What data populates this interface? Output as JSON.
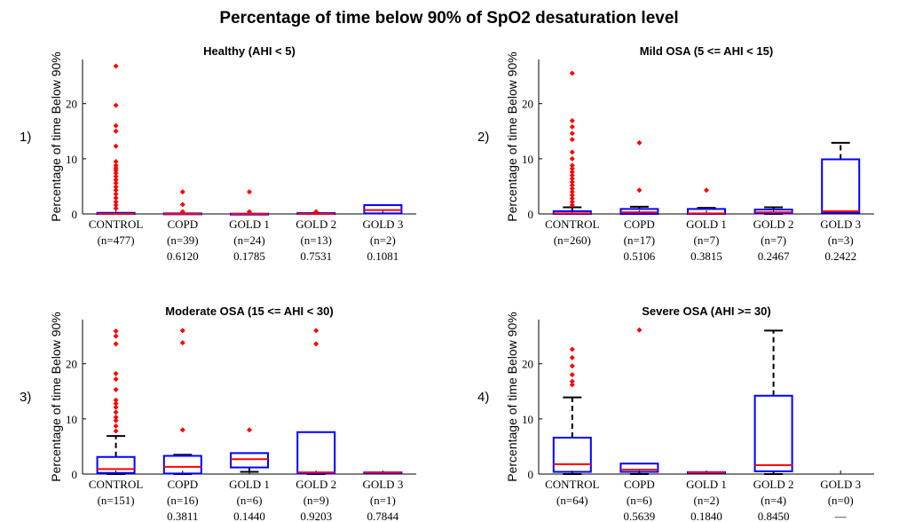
{
  "figure_title": "Percentage of time below 90% of SpO2 desaturation level",
  "chart_data": [
    {
      "type": "box",
      "panel_label": "1)",
      "title": "Healthy (AHI < 5)",
      "ylabel": "Percentage of time Below 90%",
      "xlabel": "",
      "ylim": [
        0,
        28
      ],
      "yticks": [
        0,
        10,
        20
      ],
      "grid": false,
      "categories": [
        "CONTROL",
        "COPD",
        "GOLD 1",
        "GOLD 2",
        "GOLD 3"
      ],
      "counts": [
        "(n=477)",
        "(n=39)",
        "(n=24)",
        "(n=13)",
        "(n=2)"
      ],
      "pvalues": [
        "",
        "0.6120",
        "0.1785",
        "0.7531",
        "0.1081"
      ],
      "boxes": [
        {
          "q1": 0,
          "median": 0,
          "q3": 0.2,
          "whisker_low": 0,
          "whisker_high": 0.2,
          "outliers": [
            26.8,
            19.7,
            16,
            15,
            12.3,
            9.5,
            8.8,
            8.3,
            7.9,
            7.4,
            6.8,
            6.2,
            5.6,
            4.9,
            4.3,
            3.6,
            2.9,
            2.2,
            1.6,
            1
          ]
        },
        {
          "q1": 0,
          "median": 0,
          "q3": 0.1,
          "whisker_low": 0,
          "whisker_high": 0.1,
          "outliers": [
            4,
            1.7,
            0.4
          ]
        },
        {
          "q1": 0,
          "median": 0,
          "q3": 0.05,
          "whisker_low": 0,
          "whisker_high": 0.05,
          "outliers": [
            4,
            0.4
          ]
        },
        {
          "q1": 0,
          "median": 0,
          "q3": 0.15,
          "whisker_low": 0,
          "whisker_high": 0.15,
          "outliers": [
            0.4
          ]
        },
        {
          "q1": 0.1,
          "median": 0.7,
          "q3": 1.6,
          "whisker_low": 0.1,
          "whisker_high": 1.6,
          "outliers": []
        }
      ]
    },
    {
      "type": "box",
      "panel_label": "2)",
      "title": "Mild OSA (5 <= AHI < 15)",
      "ylabel": "Percentage of time Below 90%",
      "xlabel": "",
      "ylim": [
        0,
        28
      ],
      "yticks": [
        0,
        10,
        20
      ],
      "grid": false,
      "categories": [
        "CONTROL",
        "COPD",
        "GOLD 1",
        "GOLD 2",
        "GOLD 3"
      ],
      "counts": [
        "(n=260)",
        "(n=17)",
        "(n=7)",
        "(n=7)",
        "(n=3)"
      ],
      "pvalues": [
        "",
        "0.5106",
        "0.3815",
        "0.2467",
        "0.2422"
      ],
      "boxes": [
        {
          "q1": 0,
          "median": 0.1,
          "q3": 0.5,
          "whisker_low": 0,
          "whisker_high": 1.2,
          "outliers": [
            25.5,
            16.9,
            15.8,
            14.6,
            13.5,
            11.2,
            10,
            8.8,
            8.2,
            7.6,
            7,
            6.4,
            5.8,
            5.2,
            4.6,
            4,
            3.4,
            2.8,
            2.2,
            1.6
          ]
        },
        {
          "q1": 0,
          "median": 0.3,
          "q3": 0.9,
          "whisker_low": 0,
          "whisker_high": 1.3,
          "outliers": [
            12.9,
            4.3
          ]
        },
        {
          "q1": 0,
          "median": 0.1,
          "q3": 0.9,
          "whisker_low": 0,
          "whisker_high": 1.1,
          "outliers": [
            4.3
          ]
        },
        {
          "q1": 0.1,
          "median": 0.3,
          "q3": 0.8,
          "whisker_low": 0,
          "whisker_high": 1.2,
          "outliers": []
        },
        {
          "q1": 0.2,
          "median": 0.5,
          "q3": 9.9,
          "whisker_low": 0.2,
          "whisker_high": 12.9,
          "outliers": []
        }
      ]
    },
    {
      "type": "box",
      "panel_label": "3)",
      "title": "Moderate OSA (15 <= AHI < 30)",
      "ylabel": "Percentage of time Below 90%",
      "xlabel": "",
      "ylim": [
        0,
        28
      ],
      "yticks": [
        0,
        10,
        20
      ],
      "grid": false,
      "categories": [
        "CONTROL",
        "COPD",
        "GOLD 1",
        "GOLD 2",
        "GOLD 3"
      ],
      "counts": [
        "(n=151)",
        "(n=16)",
        "(n=6)",
        "(n=9)",
        "(n=1)"
      ],
      "pvalues": [
        "",
        "0.3811",
        "0.1440",
        "0.9203",
        "0.7844"
      ],
      "boxes": [
        {
          "q1": 0.2,
          "median": 0.9,
          "q3": 3.1,
          "whisker_low": 0,
          "whisker_high": 6.9,
          "outliers": [
            25.9,
            25,
            23.6,
            18.2,
            17.2,
            15.3,
            13.4,
            12.8,
            12.1,
            11.2,
            10.3,
            9.7,
            8.7,
            7.8
          ]
        },
        {
          "q1": 0.1,
          "median": 1.3,
          "q3": 3.3,
          "whisker_low": 0,
          "whisker_high": 3.5,
          "outliers": [
            26,
            23.8,
            8
          ]
        },
        {
          "q1": 1.2,
          "median": 2.7,
          "q3": 3.8,
          "whisker_low": 0.4,
          "whisker_high": 3.8,
          "outliers": [
            8
          ]
        },
        {
          "q1": 0.1,
          "median": 0.3,
          "q3": 7.6,
          "whisker_low": 0,
          "whisker_high": 7.6,
          "outliers": [
            26,
            23.6
          ]
        },
        {
          "q1": 0.3,
          "median": 0.3,
          "q3": 0.3,
          "whisker_low": 0.3,
          "whisker_high": 0.3,
          "outliers": []
        }
      ]
    },
    {
      "type": "box",
      "panel_label": "4)",
      "title": "Severe OSA (AHI >= 30)",
      "ylabel": "Percentage of time Below 90%",
      "xlabel": "",
      "ylim": [
        0,
        28
      ],
      "yticks": [
        0,
        10,
        20
      ],
      "grid": false,
      "categories": [
        "CONTROL",
        "COPD",
        "GOLD 1",
        "GOLD 2",
        "GOLD 3"
      ],
      "counts": [
        "(n=64)",
        "(n=6)",
        "(n=2)",
        "(n=4)",
        "(n=0)"
      ],
      "pvalues": [
        "",
        "0.5639",
        "0.1840",
        "0.8450",
        "—"
      ],
      "boxes": [
        {
          "q1": 0.4,
          "median": 1.8,
          "q3": 6.6,
          "whisker_low": 0,
          "whisker_high": 13.9,
          "outliers": [
            22.6,
            21.1,
            19.6,
            18,
            16.8,
            16.2
          ]
        },
        {
          "q1": 0.4,
          "median": 0.8,
          "q3": 1.9,
          "whisker_low": 0,
          "whisker_high": 1.9,
          "outliers": [
            26.1
          ]
        },
        {
          "q1": 0.2,
          "median": 0.3,
          "q3": 0.35,
          "whisker_low": 0.2,
          "whisker_high": 0.35,
          "outliers": []
        },
        {
          "q1": 0.5,
          "median": 1.6,
          "q3": 14.2,
          "whisker_low": 0,
          "whisker_high": 26,
          "outliers": []
        },
        null
      ]
    }
  ],
  "colors": {
    "box": "#0000ff",
    "median": "#ff0000",
    "outlier": "#ff0000",
    "whisker": "#000000",
    "axis": "#000000"
  }
}
